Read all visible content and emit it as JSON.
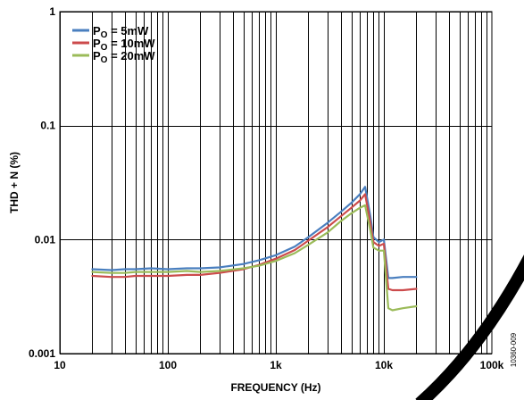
{
  "chart_data": {
    "type": "line",
    "xlabel": "FREQUENCY (Hz)",
    "ylabel": "THD + N (%)",
    "xscale": "log",
    "yscale": "log",
    "xlim": [
      10,
      100000
    ],
    "ylim": [
      0.001,
      1
    ],
    "grid": true,
    "legend_position": "top-left",
    "x_ticks": [
      {
        "value": 10,
        "label": "10"
      },
      {
        "value": 100,
        "label": "100"
      },
      {
        "value": 1000,
        "label": "1k"
      },
      {
        "value": 10000,
        "label": "10k"
      },
      {
        "value": 100000,
        "label": "100k"
      }
    ],
    "y_ticks": [
      {
        "value": 1,
        "label": "1"
      },
      {
        "value": 0.1,
        "label": "0.1"
      },
      {
        "value": 0.01,
        "label": "0.01"
      },
      {
        "value": 0.001,
        "label": "0.001"
      }
    ],
    "x": [
      20,
      30,
      40,
      50,
      70,
      100,
      150,
      200,
      300,
      500,
      700,
      1000,
      1500,
      2000,
      3000,
      4000,
      5000,
      6000,
      6700,
      7500,
      8000,
      9000,
      10000,
      11000,
      12000,
      15000,
      20000
    ],
    "series": [
      {
        "name_main": "P",
        "name_sub": "O",
        "name_rest": " = 5mW",
        "color": "#4a7fbf",
        "values": [
          0.0055,
          0.0054,
          0.0055,
          0.0055,
          0.0056,
          0.0055,
          0.0056,
          0.0056,
          0.0057,
          0.0061,
          0.0066,
          0.0073,
          0.0087,
          0.0105,
          0.014,
          0.0175,
          0.021,
          0.025,
          0.029,
          0.016,
          0.0105,
          0.0095,
          0.01,
          0.0046,
          0.0046,
          0.0047,
          0.0047
        ]
      },
      {
        "name_main": "P",
        "name_sub": "O",
        "name_rest": " = 10mW",
        "color": "#cc4b4c",
        "values": [
          0.0048,
          0.0047,
          0.0047,
          0.0048,
          0.0048,
          0.0048,
          0.0049,
          0.0049,
          0.0051,
          0.0055,
          0.006,
          0.0068,
          0.0081,
          0.0098,
          0.0128,
          0.016,
          0.019,
          0.022,
          0.025,
          0.014,
          0.0095,
          0.0088,
          0.0092,
          0.0037,
          0.0036,
          0.0036,
          0.0037
        ]
      },
      {
        "name_main": "P",
        "name_sub": "O",
        "name_rest": " = 20mW",
        "color": "#9bbb59",
        "values": [
          0.0052,
          0.0051,
          0.0051,
          0.0052,
          0.0052,
          0.0052,
          0.0053,
          0.0052,
          0.0053,
          0.0056,
          0.0059,
          0.0065,
          0.0076,
          0.009,
          0.0115,
          0.0145,
          0.017,
          0.019,
          0.02,
          0.012,
          0.0085,
          0.008,
          0.008,
          0.0025,
          0.0024,
          0.0025,
          0.0026
        ]
      }
    ]
  },
  "figure_id": "10360-009"
}
